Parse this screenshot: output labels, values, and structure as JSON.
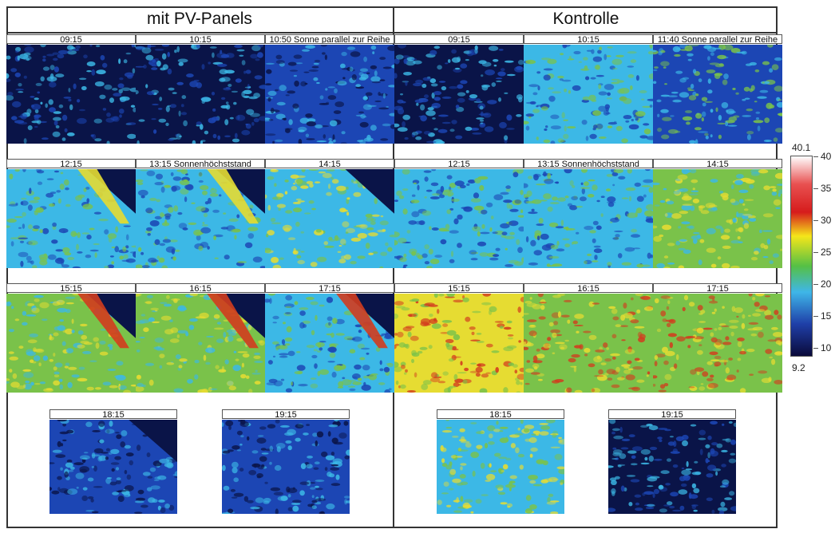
{
  "sections": {
    "left_title": "mit PV-Panels",
    "right_title": "Kontrolle"
  },
  "rows": [
    {
      "left": [
        "09:15",
        "10:15",
        "10:50 Sonne parallel zur Reihe"
      ],
      "right": [
        "09:15",
        "10:15",
        "11:40 Sonne parallel zur Reihe"
      ]
    },
    {
      "left": [
        "12:15",
        "13:15 Sonnenhöchststand",
        "14:15"
      ],
      "right": [
        "12:15",
        "13:15 Sonnenhöchststand",
        "14:15"
      ]
    },
    {
      "left": [
        "15:15",
        "16:15",
        "17:15"
      ],
      "right": [
        "15:15",
        "16:15",
        "17:15"
      ]
    },
    {
      "left": [
        "18:15",
        "19:15"
      ],
      "right": [
        "18:15",
        "19:15"
      ]
    }
  ],
  "colorbar": {
    "max_label": "40.1",
    "min_label": "9.2",
    "ticks": [
      "40",
      "35",
      "30",
      "25",
      "20",
      "15",
      "10"
    ],
    "colors": [
      "#ffffff",
      "#d61c1c",
      "#f5e61a",
      "#55c045",
      "#3fb6e8",
      "#1f3fa8",
      "#0a0a3a"
    ]
  },
  "thermal_palette": {
    "navy": "#0a1448",
    "blue": "#1c46b4",
    "cyan": "#3cb8e6",
    "green": "#7ac24a",
    "yellow": "#e6dc32",
    "red": "#d23c1e"
  }
}
